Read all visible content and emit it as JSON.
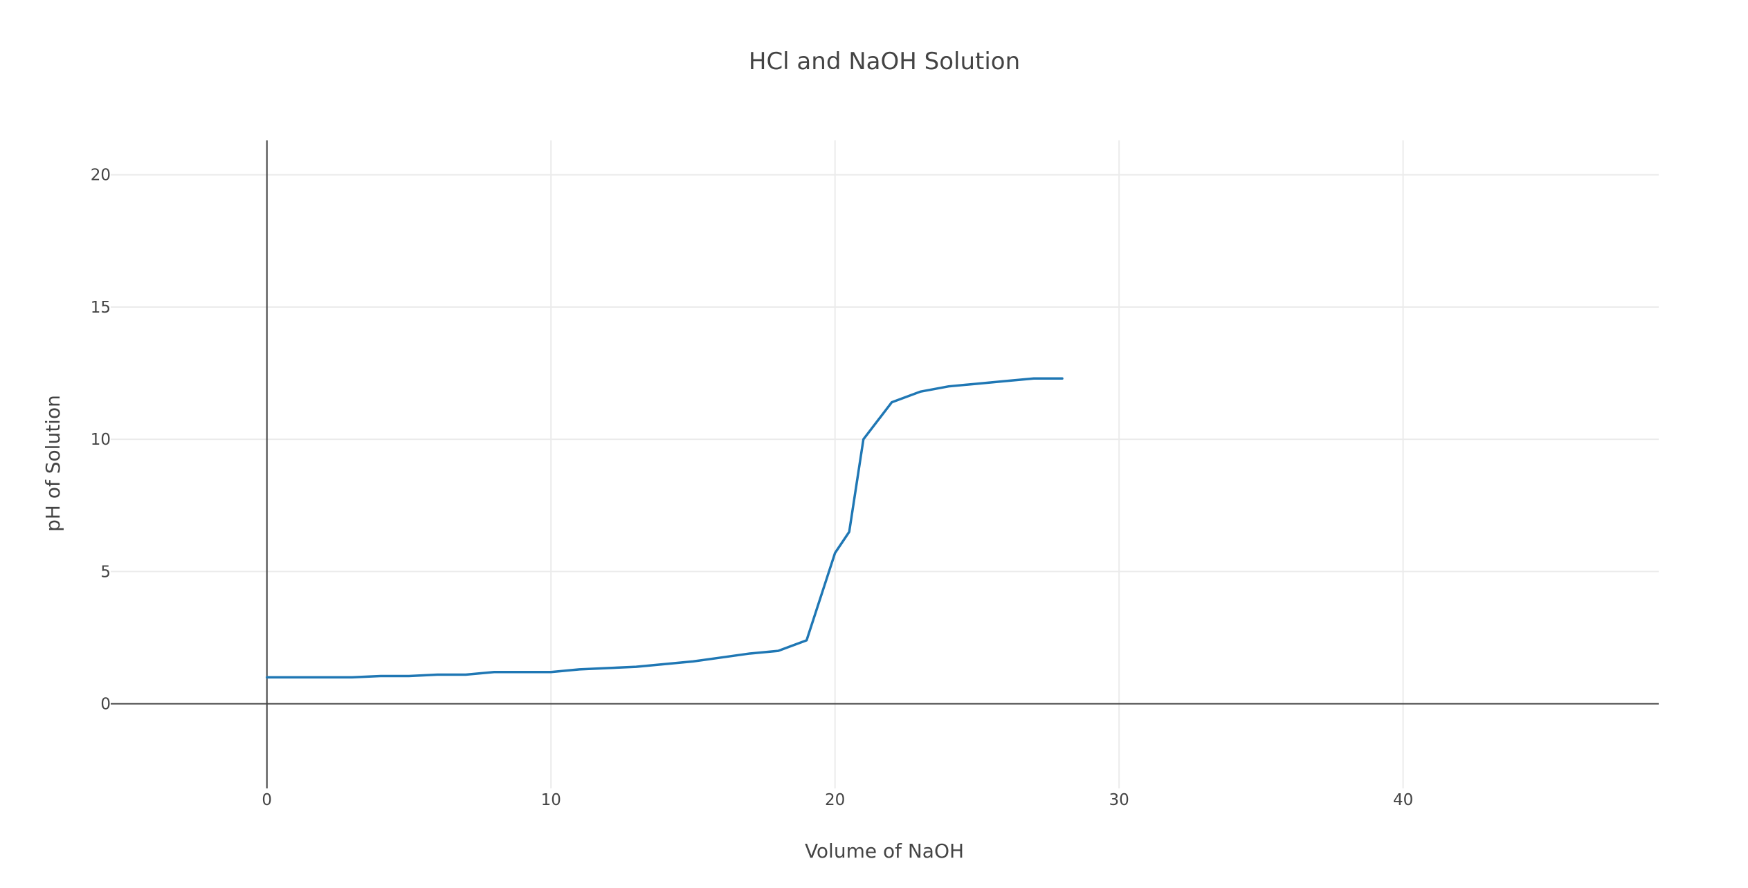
{
  "chart_data": {
    "type": "line",
    "title": "HCl and NaOH Solution",
    "xlabel": "Volume of NaOH",
    "ylabel": "pH of Solution",
    "xlim": [
      -5.5,
      49
    ],
    "ylim": [
      -3.2,
      21.3
    ],
    "grid": true,
    "x_ticks": [
      0,
      10,
      20,
      30,
      40
    ],
    "y_ticks": [
      0,
      5,
      10,
      15,
      20
    ],
    "x_tick_labels": [
      "0",
      "10",
      "20",
      "30",
      "40"
    ],
    "y_tick_labels": [
      "0",
      "5",
      "10",
      "15",
      "20"
    ],
    "series": [
      {
        "color": "#1f77b4",
        "x": [
          0,
          1,
          2,
          3,
          4,
          5,
          6,
          7,
          8,
          9,
          10,
          11,
          12,
          13,
          14,
          15,
          16,
          17,
          18,
          19,
          20,
          20.5,
          21,
          22,
          23,
          24,
          25,
          26,
          27,
          28
        ],
        "y": [
          1.0,
          1.0,
          1.0,
          1.0,
          1.05,
          1.05,
          1.1,
          1.1,
          1.2,
          1.2,
          1.2,
          1.3,
          1.35,
          1.4,
          1.5,
          1.6,
          1.75,
          1.9,
          2.0,
          2.4,
          5.7,
          6.5,
          10.0,
          11.4,
          11.8,
          12.0,
          12.1,
          12.2,
          12.3,
          12.3
        ]
      }
    ]
  }
}
